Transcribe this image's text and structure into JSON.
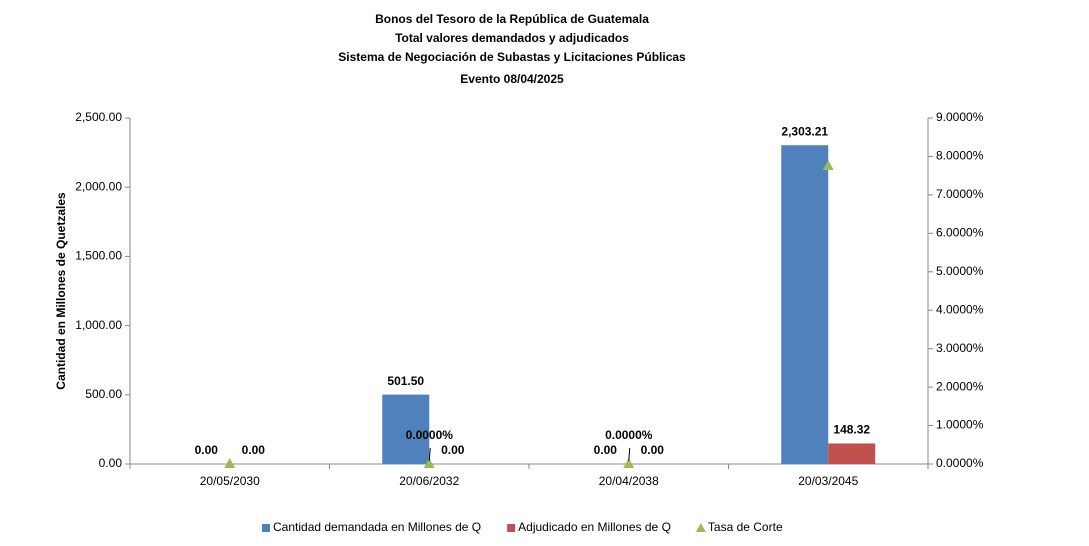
{
  "chart_data": {
    "type": "bar",
    "title": "Bonos del Tesoro de la República de Guatemala",
    "subtitle": [
      "Total valores demandados y adjudicados",
      "Sistema de Negociación de Subastas y Licitaciones Públicas",
      "Evento 08/04/2025"
    ],
    "ylabel": "Cantidad en Millones de Quetzales",
    "categories": [
      "20/05/2030",
      "20/06/2032",
      "20/04/2038",
      "20/03/2045"
    ],
    "series": [
      {
        "name": "Cantidad demandada en Millones de Q",
        "color": "#4f81bd",
        "type": "bar",
        "values": [
          0,
          501.5,
          0,
          2303.21
        ],
        "value_labels": [
          "0.00",
          "501.50",
          "0.00",
          "2,303.21"
        ]
      },
      {
        "name": "Adjudicado en Millones de Q",
        "color": "#c0504d",
        "type": "bar",
        "values": [
          0,
          0,
          0,
          148.32
        ],
        "value_labels": [
          "0.00",
          "0.00",
          "0.00",
          "148.32"
        ]
      },
      {
        "name": "Tasa de Corte",
        "color": "#9bbb59",
        "type": "marker",
        "axis": "y2",
        "values": [
          0,
          0,
          0,
          7.75
        ],
        "value_labels": [
          null,
          "0.0000%",
          "0.0000%",
          null
        ]
      }
    ],
    "ylim": [
      0,
      2500
    ],
    "yticks": [
      {
        "value": 0,
        "label": "0.00"
      },
      {
        "value": 500,
        "label": "500.00"
      },
      {
        "value": 1000,
        "label": "1,000.00"
      },
      {
        "value": 1500,
        "label": "1,500.00"
      },
      {
        "value": 2000,
        "label": "2,000.00"
      },
      {
        "value": 2500,
        "label": "2,500.00"
      }
    ],
    "y2lim": [
      0,
      9
    ],
    "y2ticks": [
      {
        "value": 0,
        "label": "0.0000%"
      },
      {
        "value": 1,
        "label": "1.0000%"
      },
      {
        "value": 2,
        "label": "2.0000%"
      },
      {
        "value": 3,
        "label": "3.0000%"
      },
      {
        "value": 4,
        "label": "4.0000%"
      },
      {
        "value": 5,
        "label": "5.0000%"
      },
      {
        "value": 6,
        "label": "6.0000%"
      },
      {
        "value": 7,
        "label": "7.0000%"
      },
      {
        "value": 8,
        "label": "8.0000%"
      },
      {
        "value": 9,
        "label": "9.0000%"
      }
    ],
    "grid": false,
    "legend": "bottom"
  }
}
